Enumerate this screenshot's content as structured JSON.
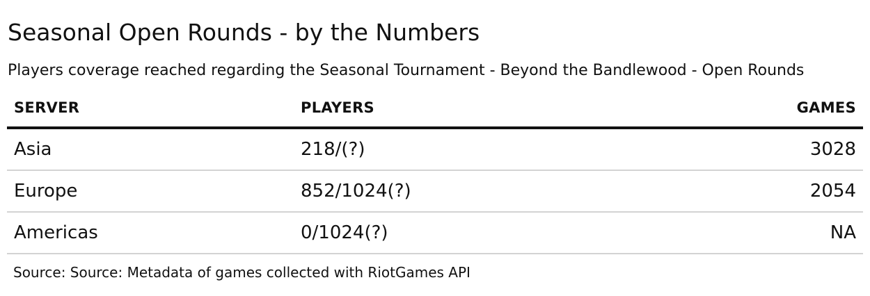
{
  "header": {
    "title": "Seasonal Open Rounds - by the Numbers",
    "subtitle": "Players coverage reached regarding the Seasonal Tournament - Beyond the Bandlewood - Open Rounds"
  },
  "table": {
    "columns": [
      "SERVER",
      "PLAYERS",
      "GAMES"
    ],
    "rows": [
      {
        "server": "Asia",
        "players": "218/(?)",
        "games": "3028"
      },
      {
        "server": "Europe",
        "players": "852/1024(?)",
        "games": "2054"
      },
      {
        "server": "Americas",
        "players": "0/1024(?)",
        "games": "NA"
      }
    ]
  },
  "footer": {
    "source": "Source: Source: Metadata of games collected with RiotGames API"
  },
  "colors": {
    "text": "#111111",
    "header_rule": "#111111",
    "row_rule": "#d3d3d3",
    "background": "#ffffff"
  }
}
